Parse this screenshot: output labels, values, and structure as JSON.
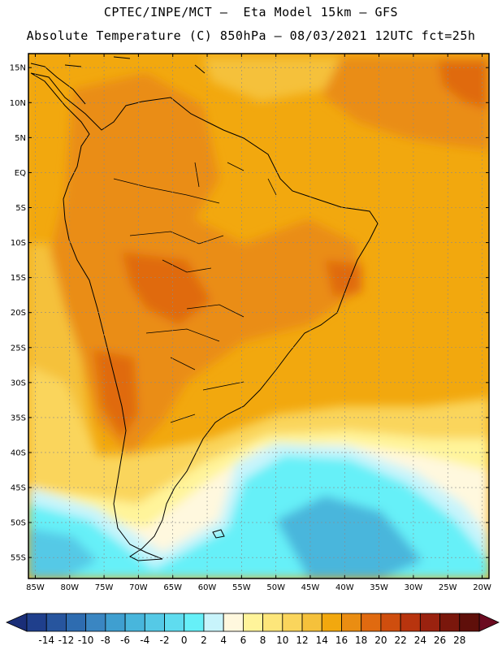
{
  "header": {
    "line1": "CPTEC/INPE/MCT –  Eta Model 15km – GFS",
    "line2": "Absolute Temperature (C) 850hPa – 08/03/2021 12UTC fct=25h"
  },
  "map": {
    "lon_range": [
      -86,
      -19
    ],
    "lat_range": [
      -58,
      17
    ],
    "lat_ticks": [
      {
        "value": 15,
        "label": "15N"
      },
      {
        "value": 10,
        "label": "10N"
      },
      {
        "value": 5,
        "label": "5N"
      },
      {
        "value": 0,
        "label": "EQ"
      },
      {
        "value": -5,
        "label": "5S"
      },
      {
        "value": -10,
        "label": "10S"
      },
      {
        "value": -15,
        "label": "15S"
      },
      {
        "value": -20,
        "label": "20S"
      },
      {
        "value": -25,
        "label": "25S"
      },
      {
        "value": -30,
        "label": "30S"
      },
      {
        "value": -35,
        "label": "35S"
      },
      {
        "value": -40,
        "label": "40S"
      },
      {
        "value": -45,
        "label": "45S"
      },
      {
        "value": -50,
        "label": "50S"
      },
      {
        "value": -55,
        "label": "55S"
      }
    ],
    "lon_ticks": [
      {
        "value": -85,
        "label": "85W"
      },
      {
        "value": -80,
        "label": "80W"
      },
      {
        "value": -75,
        "label": "75W"
      },
      {
        "value": -70,
        "label": "70W"
      },
      {
        "value": -65,
        "label": "65W"
      },
      {
        "value": -60,
        "label": "60W"
      },
      {
        "value": -55,
        "label": "55W"
      },
      {
        "value": -50,
        "label": "50W"
      },
      {
        "value": -45,
        "label": "45W"
      },
      {
        "value": -40,
        "label": "40W"
      },
      {
        "value": -35,
        "label": "35W"
      },
      {
        "value": -30,
        "label": "30W"
      },
      {
        "value": -25,
        "label": "25W"
      },
      {
        "value": -20,
        "label": "20W"
      }
    ],
    "grid": true,
    "background_color": "#f2a80e"
  },
  "colorbar": {
    "levels": [
      "-14",
      "-12",
      "-10",
      "-8",
      "-6",
      "-4",
      "-2",
      "0",
      "2",
      "4",
      "6",
      "8",
      "10",
      "12",
      "14",
      "16",
      "18",
      "20",
      "22",
      "24",
      "26",
      "28"
    ],
    "colors": [
      "#1f3f8c",
      "#27559e",
      "#2e6cb0",
      "#3a86c2",
      "#3f9fd0",
      "#48b6dc",
      "#55c9e6",
      "#5fdcef",
      "#66f0f8",
      "#c8f4fb",
      "#fff8de",
      "#fff49a",
      "#fde67a",
      "#fad55c",
      "#f5c13b",
      "#f2a80e",
      "#ea8d12",
      "#e06a10",
      "#cf4e0e",
      "#b8340e",
      "#9a220f",
      "#7a170c",
      "#5f0f0a"
    ],
    "low_arrow_color": "#1a2e78",
    "high_arrow_color": "#6b0a20"
  }
}
